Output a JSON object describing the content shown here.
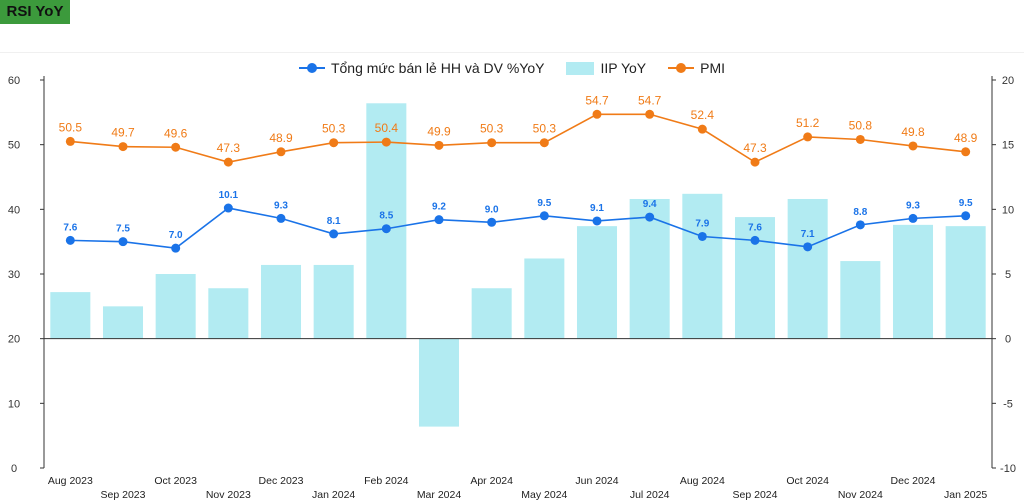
{
  "badge": "RSI YoY",
  "colors": {
    "rsi": "#1a73e8",
    "iip": "#b2ebf2",
    "pmi": "#f07b17"
  },
  "chart_data": {
    "type": "bar",
    "categories": [
      "Aug 2023",
      "Sep 2023",
      "Oct 2023",
      "Nov 2023",
      "Dec 2023",
      "Jan 2024",
      "Feb 2024",
      "Mar 2024",
      "Apr 2024",
      "May 2024",
      "Jun 2024",
      "Jul 2024",
      "Aug 2024",
      "Sep 2024",
      "Oct 2024",
      "Nov 2024",
      "Dec 2024",
      "Jan 2025"
    ],
    "series": [
      {
        "name": "Tổng mức bán lẻ HH và DV %YoY",
        "type": "line",
        "axis": "right",
        "values": [
          7.6,
          7.5,
          7.0,
          10.1,
          9.3,
          8.1,
          8.5,
          9.2,
          9.0,
          9.5,
          9.1,
          9.4,
          7.9,
          7.6,
          7.1,
          8.8,
          9.3,
          9.5
        ]
      },
      {
        "name": "IIP YoY",
        "type": "bar",
        "axis": "right",
        "values": [
          3.6,
          2.5,
          5.0,
          3.9,
          5.7,
          5.7,
          18.2,
          -6.8,
          3.9,
          6.2,
          8.7,
          10.8,
          11.2,
          9.4,
          10.8,
          6.0,
          8.8,
          8.7
        ]
      },
      {
        "name": "PMI",
        "type": "line",
        "axis": "left",
        "values": [
          50.5,
          49.7,
          49.6,
          47.3,
          48.9,
          50.3,
          50.4,
          49.9,
          50.3,
          50.3,
          54.7,
          54.7,
          52.4,
          47.3,
          51.2,
          50.8,
          49.8,
          48.9
        ]
      }
    ],
    "y_left": {
      "ylim": [
        0,
        60
      ],
      "ticks": [
        "0",
        "10",
        "20",
        "30",
        "40",
        "50",
        "60"
      ]
    },
    "y_right": {
      "ylim": [
        -10,
        20
      ],
      "ticks": [
        "-10",
        "-5",
        "0",
        "5",
        "10",
        "15",
        "20"
      ]
    },
    "legend_position": "top-center",
    "grid": false
  }
}
